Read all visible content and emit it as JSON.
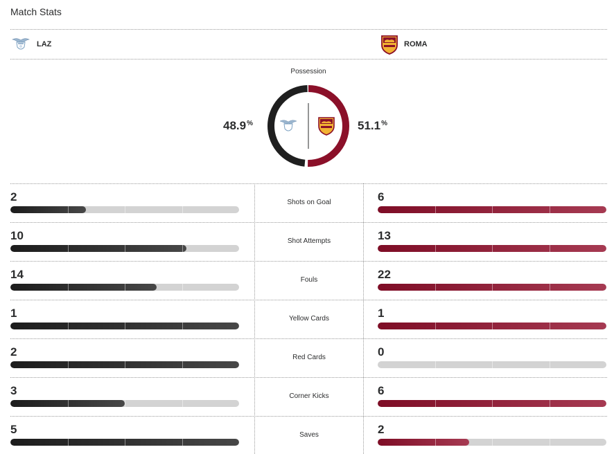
{
  "header": {
    "title": "Match Stats"
  },
  "teams": {
    "home": {
      "abbr": "LAZ",
      "color": "#1f1f1f",
      "logo_icon": "lazio-eagle-crest"
    },
    "away": {
      "abbr": "ROMA",
      "color": "#8b1029",
      "logo_icon": "roma-wolf-crest"
    }
  },
  "possession": {
    "label": "Possession",
    "home_value": "48.9",
    "away_value": "51.1",
    "unit": "%",
    "home_fraction": 0.489,
    "away_fraction": 0.511
  },
  "stats": [
    {
      "label": "Shots on Goal",
      "home": "2",
      "away": "6",
      "home_fill": 0.33,
      "away_fill": 1.0
    },
    {
      "label": "Shot Attempts",
      "home": "10",
      "away": "13",
      "home_fill": 0.77,
      "away_fill": 1.0
    },
    {
      "label": "Fouls",
      "home": "14",
      "away": "22",
      "home_fill": 0.64,
      "away_fill": 1.0
    },
    {
      "label": "Yellow Cards",
      "home": "1",
      "away": "1",
      "home_fill": 1.0,
      "away_fill": 1.0
    },
    {
      "label": "Red Cards",
      "home": "2",
      "away": "0",
      "home_fill": 1.0,
      "away_fill": 0.0
    },
    {
      "label": "Corner Kicks",
      "home": "3",
      "away": "6",
      "home_fill": 0.5,
      "away_fill": 1.0
    },
    {
      "label": "Saves",
      "home": "5",
      "away": "2",
      "home_fill": 1.0,
      "away_fill": 0.4
    }
  ]
}
